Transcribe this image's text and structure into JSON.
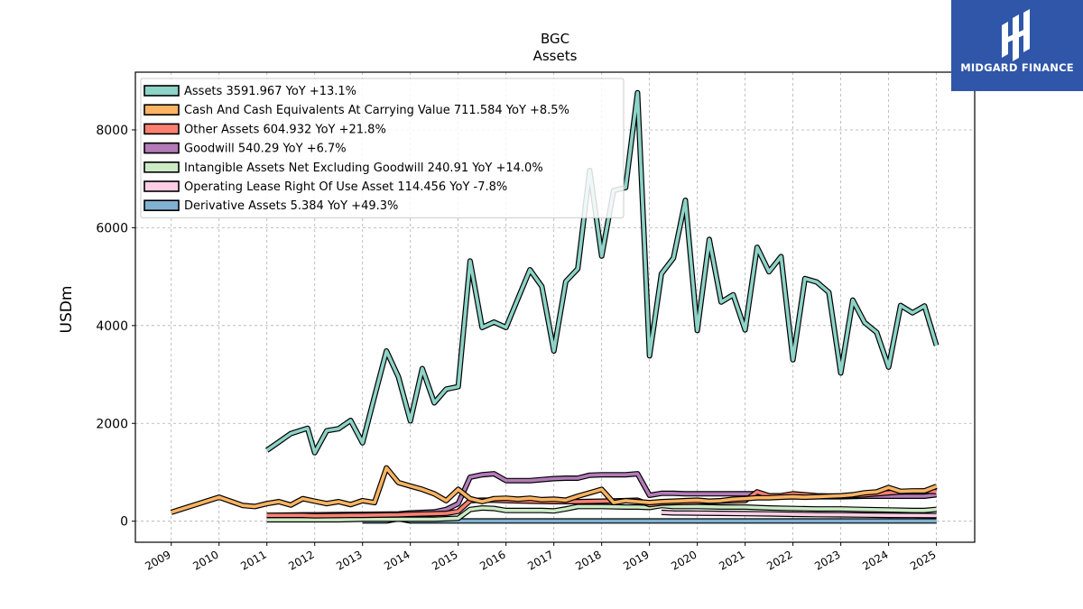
{
  "brand": {
    "name": "MIDGARD FINANCE",
    "bg_color": "#2f56a8"
  },
  "chart_data": {
    "type": "line",
    "title": "BGC",
    "subtitle": "Assets",
    "ylabel": "USDm",
    "xlabel": "",
    "xlim": [
      2008.25,
      2025.8
    ],
    "ylim": [
      -430,
      9180
    ],
    "yticks": [
      0,
      2000,
      4000,
      6000,
      8000
    ],
    "xticks": [
      "2009",
      "2010",
      "2011",
      "2012",
      "2013",
      "2014",
      "2015",
      "2016",
      "2017",
      "2018",
      "2019",
      "2020",
      "2021",
      "2022",
      "2023",
      "2024",
      "2025"
    ],
    "grid": true,
    "legend_position": "top-left",
    "series": [
      {
        "name": "Assets",
        "legend": "Assets  3591.967 YoY +13.1%",
        "color": "#8dd3c7",
        "points": [
          [
            2011.0,
            1450
          ],
          [
            2011.25,
            1620
          ],
          [
            2011.5,
            1790
          ],
          [
            2011.75,
            1870
          ],
          [
            2011.85,
            1900
          ],
          [
            2012.0,
            1400
          ],
          [
            2012.25,
            1850
          ],
          [
            2012.5,
            1890
          ],
          [
            2012.75,
            2060
          ],
          [
            2013.0,
            1600
          ],
          [
            2013.25,
            2550
          ],
          [
            2013.5,
            3480
          ],
          [
            2013.75,
            2950
          ],
          [
            2014.0,
            2050
          ],
          [
            2014.25,
            3120
          ],
          [
            2014.5,
            2420
          ],
          [
            2014.75,
            2700
          ],
          [
            2015.0,
            2750
          ],
          [
            2015.25,
            5320
          ],
          [
            2015.5,
            3960
          ],
          [
            2015.75,
            4070
          ],
          [
            2016.0,
            3960
          ],
          [
            2016.25,
            4550
          ],
          [
            2016.5,
            5140
          ],
          [
            2016.75,
            4800
          ],
          [
            2017.0,
            3480
          ],
          [
            2017.25,
            4900
          ],
          [
            2017.5,
            5160
          ],
          [
            2017.75,
            7170
          ],
          [
            2018.0,
            5420
          ],
          [
            2018.25,
            6760
          ],
          [
            2018.5,
            6820
          ],
          [
            2018.75,
            8760
          ],
          [
            2019.0,
            3380
          ],
          [
            2019.25,
            5060
          ],
          [
            2019.5,
            5380
          ],
          [
            2019.75,
            6560
          ],
          [
            2020.0,
            3900
          ],
          [
            2020.25,
            5760
          ],
          [
            2020.5,
            4480
          ],
          [
            2020.75,
            4630
          ],
          [
            2021.0,
            3910
          ],
          [
            2021.25,
            5600
          ],
          [
            2021.5,
            5100
          ],
          [
            2021.75,
            5410
          ],
          [
            2022.0,
            3300
          ],
          [
            2022.25,
            4960
          ],
          [
            2022.5,
            4890
          ],
          [
            2022.75,
            4680
          ],
          [
            2023.0,
            3030
          ],
          [
            2023.25,
            4520
          ],
          [
            2023.5,
            4060
          ],
          [
            2023.75,
            3860
          ],
          [
            2024.0,
            3150
          ],
          [
            2024.25,
            4410
          ],
          [
            2024.5,
            4260
          ],
          [
            2024.75,
            4400
          ],
          [
            2025.0,
            3592
          ]
        ]
      },
      {
        "name": "Cash And Cash Equivalents At Carrying Value",
        "legend": "Cash And Cash Equivalents At Carrying Value  711.584 YoY +8.5%",
        "color": "#fdb462",
        "points": [
          [
            2009.0,
            180
          ],
          [
            2010.0,
            490
          ],
          [
            2010.5,
            320
          ],
          [
            2010.75,
            300
          ],
          [
            2011.0,
            360
          ],
          [
            2011.25,
            400
          ],
          [
            2011.5,
            330
          ],
          [
            2011.75,
            460
          ],
          [
            2012.0,
            410
          ],
          [
            2012.25,
            360
          ],
          [
            2012.5,
            400
          ],
          [
            2012.75,
            340
          ],
          [
            2013.0,
            420
          ],
          [
            2013.25,
            380
          ],
          [
            2013.5,
            1090
          ],
          [
            2013.75,
            790
          ],
          [
            2014.0,
            720
          ],
          [
            2014.25,
            650
          ],
          [
            2014.5,
            560
          ],
          [
            2014.75,
            420
          ],
          [
            2015.0,
            650
          ],
          [
            2015.25,
            460
          ],
          [
            2015.5,
            400
          ],
          [
            2015.75,
            460
          ],
          [
            2016.0,
            470
          ],
          [
            2016.25,
            450
          ],
          [
            2016.5,
            470
          ],
          [
            2016.75,
            440
          ],
          [
            2017.0,
            450
          ],
          [
            2017.25,
            430
          ],
          [
            2017.5,
            510
          ],
          [
            2017.75,
            580
          ],
          [
            2018.0,
            650
          ],
          [
            2018.25,
            380
          ],
          [
            2018.5,
            420
          ],
          [
            2018.75,
            400
          ],
          [
            2019.0,
            380
          ],
          [
            2019.25,
            400
          ],
          [
            2019.5,
            410
          ],
          [
            2019.75,
            420
          ],
          [
            2020.0,
            430
          ],
          [
            2020.25,
            410
          ],
          [
            2020.5,
            420
          ],
          [
            2020.75,
            450
          ],
          [
            2021.0,
            460
          ],
          [
            2021.25,
            480
          ],
          [
            2021.5,
            480
          ],
          [
            2021.75,
            490
          ],
          [
            2022.0,
            500
          ],
          [
            2022.25,
            490
          ],
          [
            2022.5,
            500
          ],
          [
            2022.75,
            510
          ],
          [
            2023.0,
            520
          ],
          [
            2023.25,
            540
          ],
          [
            2023.5,
            580
          ],
          [
            2023.75,
            600
          ],
          [
            2024.0,
            690
          ],
          [
            2024.25,
            610
          ],
          [
            2024.5,
            620
          ],
          [
            2024.75,
            620
          ],
          [
            2025.0,
            712
          ]
        ]
      },
      {
        "name": "Other Assets",
        "legend": "Other Assets  604.932 YoY +21.8%",
        "color": "#fb8072",
        "points": [
          [
            2011.0,
            120
          ],
          [
            2011.75,
            120
          ],
          [
            2012.0,
            110
          ],
          [
            2012.75,
            120
          ],
          [
            2013.0,
            120
          ],
          [
            2013.75,
            130
          ],
          [
            2014.0,
            140
          ],
          [
            2014.75,
            160
          ],
          [
            2015.0,
            200
          ],
          [
            2015.25,
            420
          ],
          [
            2015.5,
            430
          ],
          [
            2015.75,
            430
          ],
          [
            2016.0,
            420
          ],
          [
            2016.5,
            410
          ],
          [
            2017.0,
            400
          ],
          [
            2017.5,
            400
          ],
          [
            2018.0,
            410
          ],
          [
            2018.5,
            420
          ],
          [
            2018.75,
            430
          ],
          [
            2019.0,
            340
          ],
          [
            2019.25,
            370
          ],
          [
            2019.5,
            380
          ],
          [
            2020.0,
            390
          ],
          [
            2020.5,
            410
          ],
          [
            2021.0,
            420
          ],
          [
            2021.25,
            600
          ],
          [
            2021.5,
            520
          ],
          [
            2021.75,
            520
          ],
          [
            2022.0,
            560
          ],
          [
            2022.5,
            520
          ],
          [
            2023.0,
            510
          ],
          [
            2023.5,
            540
          ],
          [
            2024.0,
            580
          ],
          [
            2024.25,
            600
          ],
          [
            2024.75,
            620
          ],
          [
            2025.0,
            605
          ]
        ]
      },
      {
        "name": "Goodwill",
        "legend": "Goodwill  540.29 YoY +6.7%",
        "color": "#b37bb8",
        "points": [
          [
            2011.0,
            120
          ],
          [
            2011.75,
            130
          ],
          [
            2012.0,
            130
          ],
          [
            2013.0,
            140
          ],
          [
            2013.75,
            150
          ],
          [
            2014.0,
            170
          ],
          [
            2014.5,
            190
          ],
          [
            2014.75,
            240
          ],
          [
            2015.0,
            360
          ],
          [
            2015.25,
            900
          ],
          [
            2015.5,
            950
          ],
          [
            2015.75,
            970
          ],
          [
            2016.0,
            830
          ],
          [
            2016.25,
            830
          ],
          [
            2016.5,
            830
          ],
          [
            2016.75,
            850
          ],
          [
            2017.0,
            870
          ],
          [
            2017.25,
            880
          ],
          [
            2017.5,
            880
          ],
          [
            2017.75,
            940
          ],
          [
            2018.0,
            950
          ],
          [
            2018.25,
            950
          ],
          [
            2018.5,
            950
          ],
          [
            2018.75,
            970
          ],
          [
            2019.0,
            530
          ],
          [
            2019.25,
            570
          ],
          [
            2019.5,
            570
          ],
          [
            2019.75,
            560
          ],
          [
            2020.0,
            560
          ],
          [
            2020.5,
            560
          ],
          [
            2021.0,
            560
          ],
          [
            2021.25,
            560
          ],
          [
            2021.5,
            500
          ],
          [
            2022.0,
            500
          ],
          [
            2022.5,
            500
          ],
          [
            2023.0,
            500
          ],
          [
            2023.5,
            510
          ],
          [
            2024.0,
            510
          ],
          [
            2024.5,
            510
          ],
          [
            2024.75,
            510
          ],
          [
            2025.0,
            540
          ]
        ]
      },
      {
        "name": "Intangible Assets Net Excluding Goodwill",
        "legend": "Intangible Assets Net Excluding Goodwill  240.91 YoY +14.0%",
        "color": "#ccebc5",
        "points": [
          [
            2011.0,
            30
          ],
          [
            2011.5,
            30
          ],
          [
            2012.0,
            30
          ],
          [
            2012.5,
            30
          ],
          [
            2013.0,
            40
          ],
          [
            2013.5,
            40
          ],
          [
            2014.0,
            40
          ],
          [
            2014.5,
            40
          ],
          [
            2015.0,
            60
          ],
          [
            2015.25,
            240
          ],
          [
            2015.5,
            270
          ],
          [
            2015.75,
            260
          ],
          [
            2016.0,
            220
          ],
          [
            2016.25,
            220
          ],
          [
            2016.5,
            220
          ],
          [
            2016.75,
            220
          ],
          [
            2017.0,
            210
          ],
          [
            2017.25,
            250
          ],
          [
            2017.5,
            300
          ],
          [
            2017.75,
            300
          ],
          [
            2018.0,
            300
          ],
          [
            2018.5,
            290
          ],
          [
            2018.75,
            290
          ],
          [
            2019.0,
            280
          ],
          [
            2019.25,
            320
          ],
          [
            2019.5,
            300
          ],
          [
            2020.0,
            300
          ],
          [
            2020.5,
            290
          ],
          [
            2021.0,
            290
          ],
          [
            2021.5,
            270
          ],
          [
            2022.0,
            260
          ],
          [
            2022.5,
            250
          ],
          [
            2023.0,
            250
          ],
          [
            2023.5,
            240
          ],
          [
            2024.0,
            230
          ],
          [
            2024.5,
            220
          ],
          [
            2024.75,
            220
          ],
          [
            2025.0,
            241
          ]
        ]
      },
      {
        "name": "Operating Lease Right Of Use Asset",
        "legend": "Operating Lease Right Of Use Asset  114.456 YoY -7.8%",
        "color": "#fccde5",
        "points": [
          [
            2019.25,
            180
          ],
          [
            2019.5,
            170
          ],
          [
            2020.0,
            165
          ],
          [
            2020.5,
            160
          ],
          [
            2021.0,
            155
          ],
          [
            2021.5,
            150
          ],
          [
            2022.0,
            140
          ],
          [
            2022.5,
            135
          ],
          [
            2023.0,
            130
          ],
          [
            2023.5,
            125
          ],
          [
            2024.0,
            120
          ],
          [
            2024.5,
            118
          ],
          [
            2025.0,
            114
          ]
        ]
      },
      {
        "name": "Derivative Assets",
        "legend": "Derivative Assets  5.384 YoY +49.3%",
        "color": "#80b1d3",
        "points": [
          [
            2013.0,
            5
          ],
          [
            2013.5,
            5
          ],
          [
            2013.75,
            50
          ],
          [
            2014.0,
            5
          ],
          [
            2014.5,
            5
          ],
          [
            2015.0,
            5
          ],
          [
            2016.0,
            5
          ],
          [
            2017.0,
            5
          ],
          [
            2018.0,
            5
          ],
          [
            2019.0,
            5
          ],
          [
            2020.0,
            5
          ],
          [
            2021.0,
            5
          ],
          [
            2022.0,
            5
          ],
          [
            2023.0,
            5
          ],
          [
            2024.0,
            5
          ],
          [
            2025.0,
            5
          ]
        ]
      }
    ]
  }
}
